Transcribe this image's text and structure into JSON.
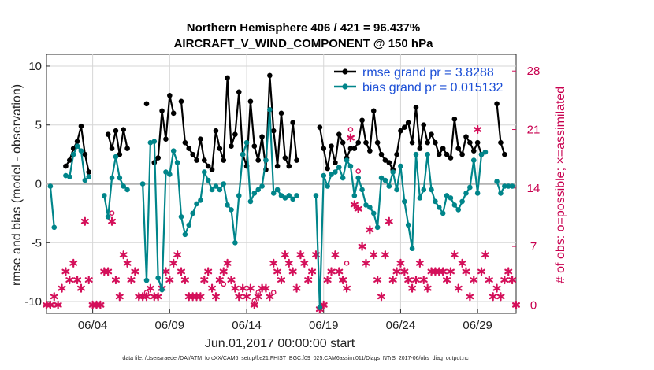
{
  "chart_data": {
    "type": "line",
    "title_line1": "Northern Hemisphere 406 / 421 = 96.437%",
    "title_line2": "AIRCRAFT_V_WIND_COMPONENT @ 150 hPa",
    "xlabel": "Jun.01,2017 00:00:00 start",
    "ylabel": "rmse and bias (model - observation)",
    "ylabel_right": "# of obs: o=possible; ×=assimilated",
    "footnote": "data file: /Users/raeder/DAI/ATM_forcXX/CAM6_setup/f.e21.FHIST_BGC.f09_025.CAM6assim.011/Diags_NTrS_2017-06/obs_diag_output.nc",
    "xlim": [
      1.0,
      31.5
    ],
    "ylim": [
      -11,
      11
    ],
    "ylim_right": [
      -1,
      30
    ],
    "x_ticks": [
      4,
      9,
      14,
      19,
      24,
      29
    ],
    "x_tick_labels": [
      "06/04",
      "06/09",
      "06/14",
      "06/19",
      "06/24",
      "06/29"
    ],
    "y_ticks": [
      10,
      5,
      0,
      -5,
      -10
    ],
    "y_tick_labels": [
      "10",
      "5",
      "0",
      "-5",
      "-10"
    ],
    "y_ticks_right": [
      28,
      21,
      14,
      7,
      0
    ],
    "y_tick_labels_right": [
      "28",
      "21",
      "14",
      "7",
      "0"
    ],
    "colors": {
      "rmse": "#000000",
      "bias": "#00858a",
      "obs": "#d4105a",
      "zero": "#b4b4b4"
    },
    "series": [
      {
        "name": "rmse",
        "legend": "rmse grand pr = 3.8288",
        "points": [
          [
            2.25,
            1.5
          ],
          [
            2.5,
            2.0
          ],
          [
            2.75,
            3.0
          ],
          [
            3.0,
            3.6
          ],
          [
            3.25,
            4.9
          ],
          [
            3.5,
            2.5
          ],
          [
            3.75,
            1.0
          ],
          null,
          [
            5.0,
            4.2
          ],
          [
            5.25,
            3.0
          ],
          [
            5.5,
            4.5
          ],
          [
            5.75,
            2.5
          ],
          [
            6.0,
            4.6
          ],
          [
            6.25,
            3.0
          ],
          null,
          [
            7.5,
            6.8
          ],
          null,
          [
            8.0,
            1.8
          ],
          [
            8.25,
            2.2
          ],
          [
            8.5,
            6.2
          ],
          [
            8.75,
            3.8
          ],
          [
            9.0,
            7.5
          ],
          [
            9.25,
            6.0
          ],
          null,
          [
            9.75,
            7.0
          ],
          [
            10.0,
            3.5
          ],
          [
            10.25,
            3.0
          ],
          [
            10.5,
            2.5
          ],
          [
            10.75,
            2.0
          ],
          [
            11.0,
            3.8
          ],
          [
            11.25,
            2.0
          ],
          [
            11.5,
            1.5
          ],
          [
            11.75,
            1.2
          ],
          [
            12.0,
            4.5
          ],
          [
            12.25,
            3.0
          ],
          [
            12.5,
            2.0
          ],
          [
            12.75,
            9.0
          ],
          [
            13.0,
            3.2
          ],
          [
            13.25,
            4.2
          ],
          [
            13.5,
            7.8
          ],
          [
            13.75,
            2.5
          ],
          [
            14.0,
            1.5
          ],
          [
            14.25,
            7.0
          ],
          [
            14.5,
            3.2
          ],
          [
            14.75,
            2.0
          ],
          [
            15.0,
            4.0
          ],
          [
            15.25,
            1.2
          ],
          [
            15.5,
            9.2
          ],
          [
            15.75,
            4.5
          ],
          [
            16.0,
            1.5
          ],
          [
            16.25,
            6.0
          ],
          [
            16.5,
            2.2
          ],
          [
            16.75,
            1.5
          ],
          [
            17.0,
            5.2
          ],
          [
            17.25,
            2.0
          ],
          null,
          [
            18.75,
            4.8
          ],
          [
            19.0,
            3.0
          ],
          [
            19.25,
            1.3
          ],
          [
            19.5,
            3.2
          ],
          [
            19.75,
            1.8
          ],
          [
            20.0,
            4.2
          ],
          [
            20.25,
            3.5
          ],
          [
            20.5,
            2.2
          ],
          [
            20.75,
            3.0
          ],
          [
            21.0,
            3.0
          ],
          [
            21.25,
            3.5
          ],
          [
            21.5,
            5.4
          ],
          [
            21.75,
            3.5
          ],
          [
            22.0,
            2.8
          ],
          [
            22.25,
            6.2
          ],
          [
            22.5,
            3.5
          ],
          [
            22.75,
            2.5
          ],
          [
            23.0,
            2.0
          ],
          [
            23.25,
            1.8
          ],
          [
            23.5,
            1.2
          ],
          [
            23.75,
            2.5
          ],
          [
            24.0,
            4.5
          ],
          [
            24.25,
            4.8
          ],
          [
            24.5,
            5.2
          ],
          [
            24.75,
            3.5
          ],
          [
            25.0,
            6.5
          ],
          [
            25.25,
            3.0
          ],
          [
            25.5,
            5.0
          ],
          [
            25.75,
            3.5
          ],
          [
            26.0,
            4.2
          ],
          [
            26.25,
            3.5
          ],
          [
            26.5,
            2.5
          ],
          [
            26.75,
            3.0
          ],
          [
            27.0,
            2.5
          ],
          [
            27.25,
            2.2
          ],
          [
            27.5,
            5.5
          ],
          [
            27.75,
            3.0
          ],
          [
            28.0,
            2.5
          ],
          [
            28.25,
            4.0
          ],
          [
            28.5,
            3.5
          ],
          [
            28.75,
            2.8
          ],
          [
            29.0,
            3.5
          ],
          [
            29.25,
            2.5
          ],
          null,
          [
            30.25,
            6.8
          ],
          [
            30.5,
            3.5
          ],
          [
            30.75,
            2.5
          ]
        ]
      },
      {
        "name": "bias",
        "legend": "bias grand pr = 0.015132",
        "points": [
          [
            1.25,
            -0.2
          ],
          [
            1.5,
            -3.7
          ],
          null,
          [
            2.25,
            0.7
          ],
          [
            2.5,
            0.6
          ],
          [
            2.75,
            2.5
          ],
          [
            3.0,
            3.2
          ],
          [
            3.25,
            2.8
          ],
          [
            3.5,
            0.3
          ],
          [
            3.75,
            0.6
          ],
          null,
          [
            4.75,
            -1.0
          ],
          [
            5.0,
            -2.8
          ],
          [
            5.25,
            0.5
          ],
          [
            5.5,
            2.3
          ],
          [
            5.75,
            0.5
          ],
          [
            6.0,
            -0.2
          ],
          [
            6.25,
            -0.5
          ],
          null,
          [
            7.25,
            0.0
          ],
          [
            7.5,
            -8.2
          ],
          [
            7.75,
            3.5
          ],
          [
            8.0,
            3.6
          ],
          [
            8.25,
            -8.0
          ],
          [
            8.5,
            -9.0
          ],
          [
            8.75,
            1.0
          ],
          [
            9.0,
            0.8
          ],
          [
            9.25,
            2.8
          ],
          [
            9.5,
            1.8
          ],
          [
            9.75,
            -2.8
          ],
          [
            10.0,
            -4.3
          ],
          [
            10.25,
            -3.5
          ],
          [
            10.5,
            -2.5
          ],
          [
            10.75,
            -1.7
          ],
          [
            11.0,
            -1.4
          ],
          [
            11.25,
            1.0
          ],
          [
            11.5,
            0.3
          ],
          [
            11.75,
            -0.5
          ],
          [
            12.0,
            -0.2
          ],
          [
            12.25,
            -0.5
          ],
          [
            12.5,
            0.0
          ],
          [
            12.75,
            -1.8
          ],
          [
            13.0,
            -2.2
          ],
          [
            13.25,
            -5.0
          ],
          [
            13.5,
            -1.0
          ],
          [
            13.75,
            2.5
          ],
          [
            14.0,
            3.5
          ],
          [
            14.25,
            -1.5
          ],
          [
            14.5,
            -0.8
          ],
          [
            14.75,
            -0.5
          ],
          [
            15.0,
            -0.2
          ],
          [
            15.25,
            2.0
          ],
          [
            15.5,
            6.3
          ],
          [
            15.75,
            -0.8
          ],
          [
            16.0,
            -0.5
          ],
          [
            16.25,
            -1.0
          ],
          [
            16.5,
            -1.2
          ],
          [
            16.75,
            -1.0
          ],
          [
            17.0,
            -1.3
          ],
          [
            17.25,
            -1.0
          ],
          null,
          [
            18.5,
            -1.0
          ],
          [
            18.75,
            -10.5
          ],
          [
            19.0,
            0.7
          ],
          [
            19.25,
            -0.2
          ],
          [
            19.5,
            0.8
          ],
          [
            19.75,
            1.0
          ],
          [
            20.0,
            1.4
          ],
          [
            20.25,
            0.5
          ],
          [
            20.5,
            2.0
          ],
          [
            20.75,
            1.5
          ],
          [
            21.0,
            -1.0
          ],
          [
            21.25,
            0.5
          ],
          [
            21.5,
            -0.5
          ],
          [
            21.75,
            -1.8
          ],
          [
            22.0,
            -2.0
          ],
          [
            22.25,
            -2.5
          ],
          [
            22.5,
            -3.7
          ],
          [
            22.75,
            0.5
          ],
          [
            23.0,
            0.3
          ],
          [
            23.25,
            -0.2
          ],
          [
            23.5,
            1.0
          ],
          [
            23.75,
            -0.5
          ],
          [
            24.0,
            1.5
          ],
          [
            24.25,
            -1.5
          ],
          [
            24.5,
            -3.5
          ],
          [
            24.75,
            -5.5
          ],
          [
            25.0,
            2.5
          ],
          [
            25.25,
            -1.2
          ],
          [
            25.5,
            -0.5
          ],
          [
            25.75,
            2.5
          ],
          [
            26.0,
            -0.5
          ],
          [
            26.25,
            -1.5
          ],
          [
            26.5,
            -2.0
          ],
          [
            26.75,
            -2.5
          ],
          [
            27.0,
            -1.0
          ],
          [
            27.25,
            -1.2
          ],
          [
            27.5,
            -1.8
          ],
          [
            27.75,
            -2.2
          ],
          [
            28.0,
            -1.5
          ],
          [
            28.25,
            -0.8
          ],
          [
            28.5,
            -0.3
          ],
          [
            28.75,
            2.0
          ],
          [
            29.0,
            -0.8
          ],
          [
            29.25,
            2.5
          ],
          [
            29.5,
            2.7
          ],
          null,
          [
            30.25,
            0.2
          ],
          [
            30.5,
            -0.8
          ],
          [
            30.75,
            -0.2
          ],
          [
            31.0,
            -0.2
          ],
          [
            31.25,
            -0.2
          ]
        ]
      }
    ],
    "obs_assimilated": [
      [
        1.0,
        0
      ],
      [
        1.25,
        0
      ],
      [
        1.5,
        1
      ],
      [
        1.75,
        0
      ],
      [
        2.0,
        2
      ],
      [
        2.25,
        4
      ],
      [
        2.5,
        3
      ],
      [
        2.75,
        5
      ],
      [
        3.0,
        3
      ],
      [
        3.25,
        2
      ],
      [
        3.5,
        10
      ],
      [
        3.75,
        3
      ],
      [
        4.0,
        0
      ],
      [
        4.25,
        0
      ],
      [
        4.5,
        0
      ],
      [
        4.75,
        4
      ],
      [
        5.0,
        4
      ],
      [
        5.25,
        10
      ],
      [
        5.5,
        3
      ],
      [
        5.75,
        1
      ],
      [
        6.0,
        6
      ],
      [
        6.25,
        5
      ],
      [
        6.5,
        3
      ],
      [
        6.75,
        4
      ],
      [
        7.0,
        1
      ],
      [
        7.25,
        1
      ],
      [
        7.5,
        1
      ],
      [
        7.75,
        2
      ],
      [
        8.0,
        1
      ],
      [
        8.25,
        1
      ],
      [
        8.5,
        2
      ],
      [
        8.75,
        4
      ],
      [
        9.0,
        3
      ],
      [
        9.25,
        5
      ],
      [
        9.5,
        6
      ],
      [
        9.75,
        4
      ],
      [
        10.0,
        3
      ],
      [
        10.25,
        1
      ],
      [
        10.5,
        1
      ],
      [
        10.75,
        1
      ],
      [
        11.0,
        1
      ],
      [
        11.25,
        3
      ],
      [
        11.5,
        4
      ],
      [
        11.75,
        2
      ],
      [
        12.0,
        1
      ],
      [
        12.25,
        3
      ],
      [
        12.5,
        4
      ],
      [
        12.75,
        5
      ],
      [
        13.0,
        3
      ],
      [
        13.25,
        2
      ],
      [
        13.5,
        1
      ],
      [
        13.75,
        2
      ],
      [
        14.0,
        1
      ],
      [
        14.25,
        2
      ],
      [
        14.5,
        0
      ],
      [
        14.75,
        1
      ],
      [
        15.0,
        2
      ],
      [
        15.25,
        2
      ],
      [
        15.5,
        1
      ],
      [
        15.75,
        5
      ],
      [
        16.0,
        4
      ],
      [
        16.25,
        3
      ],
      [
        16.5,
        6
      ],
      [
        16.75,
        5
      ],
      [
        17.0,
        4
      ],
      [
        17.25,
        2
      ],
      [
        17.5,
        6
      ],
      [
        17.75,
        5
      ],
      [
        18.0,
        3
      ],
      [
        18.25,
        4
      ],
      [
        18.5,
        6
      ],
      [
        18.75,
        -0.5
      ],
      [
        19.0,
        0
      ],
      [
        19.25,
        3
      ],
      [
        19.5,
        4
      ],
      [
        19.75,
        6
      ],
      [
        20.0,
        4
      ],
      [
        20.25,
        3
      ],
      [
        20.5,
        2
      ],
      [
        20.75,
        20
      ],
      [
        21.0,
        12
      ],
      [
        21.25,
        11.5
      ],
      [
        21.5,
        7
      ],
      [
        21.75,
        5
      ],
      [
        22.0,
        9
      ],
      [
        22.25,
        6
      ],
      [
        22.5,
        3
      ],
      [
        22.75,
        1
      ],
      [
        23.0,
        6
      ],
      [
        23.25,
        10
      ],
      [
        23.5,
        3
      ],
      [
        23.75,
        4
      ],
      [
        24.0,
        5
      ],
      [
        24.25,
        4
      ],
      [
        24.5,
        3
      ],
      [
        24.75,
        2
      ],
      [
        25.0,
        3
      ],
      [
        25.25,
        5
      ],
      [
        25.5,
        3
      ],
      [
        25.75,
        2
      ],
      [
        26.0,
        4
      ],
      [
        26.25,
        4
      ],
      [
        26.5,
        4
      ],
      [
        26.75,
        4
      ],
      [
        27.0,
        3
      ],
      [
        27.25,
        4
      ],
      [
        27.5,
        6
      ],
      [
        27.75,
        2
      ],
      [
        28.0,
        5
      ],
      [
        28.25,
        4
      ],
      [
        28.5,
        1
      ],
      [
        28.75,
        3
      ],
      [
        29.0,
        21
      ],
      [
        29.25,
        4
      ],
      [
        29.5,
        6
      ],
      [
        29.75,
        3
      ],
      [
        30.0,
        1
      ],
      [
        30.25,
        2
      ],
      [
        30.5,
        1
      ],
      [
        30.75,
        3
      ],
      [
        31.0,
        4
      ],
      [
        31.25,
        3
      ],
      [
        31.5,
        0
      ]
    ],
    "obs_possible": [
      [
        5.25,
        11
      ],
      [
        7.5,
        1.5
      ],
      [
        12.5,
        2.5
      ],
      [
        14.5,
        0.5
      ],
      [
        14.75,
        1.5
      ],
      [
        15.75,
        1.5
      ],
      [
        20.25,
        3
      ],
      [
        20.5,
        5
      ],
      [
        20.75,
        21
      ],
      [
        21.25,
        16
      ]
    ]
  }
}
